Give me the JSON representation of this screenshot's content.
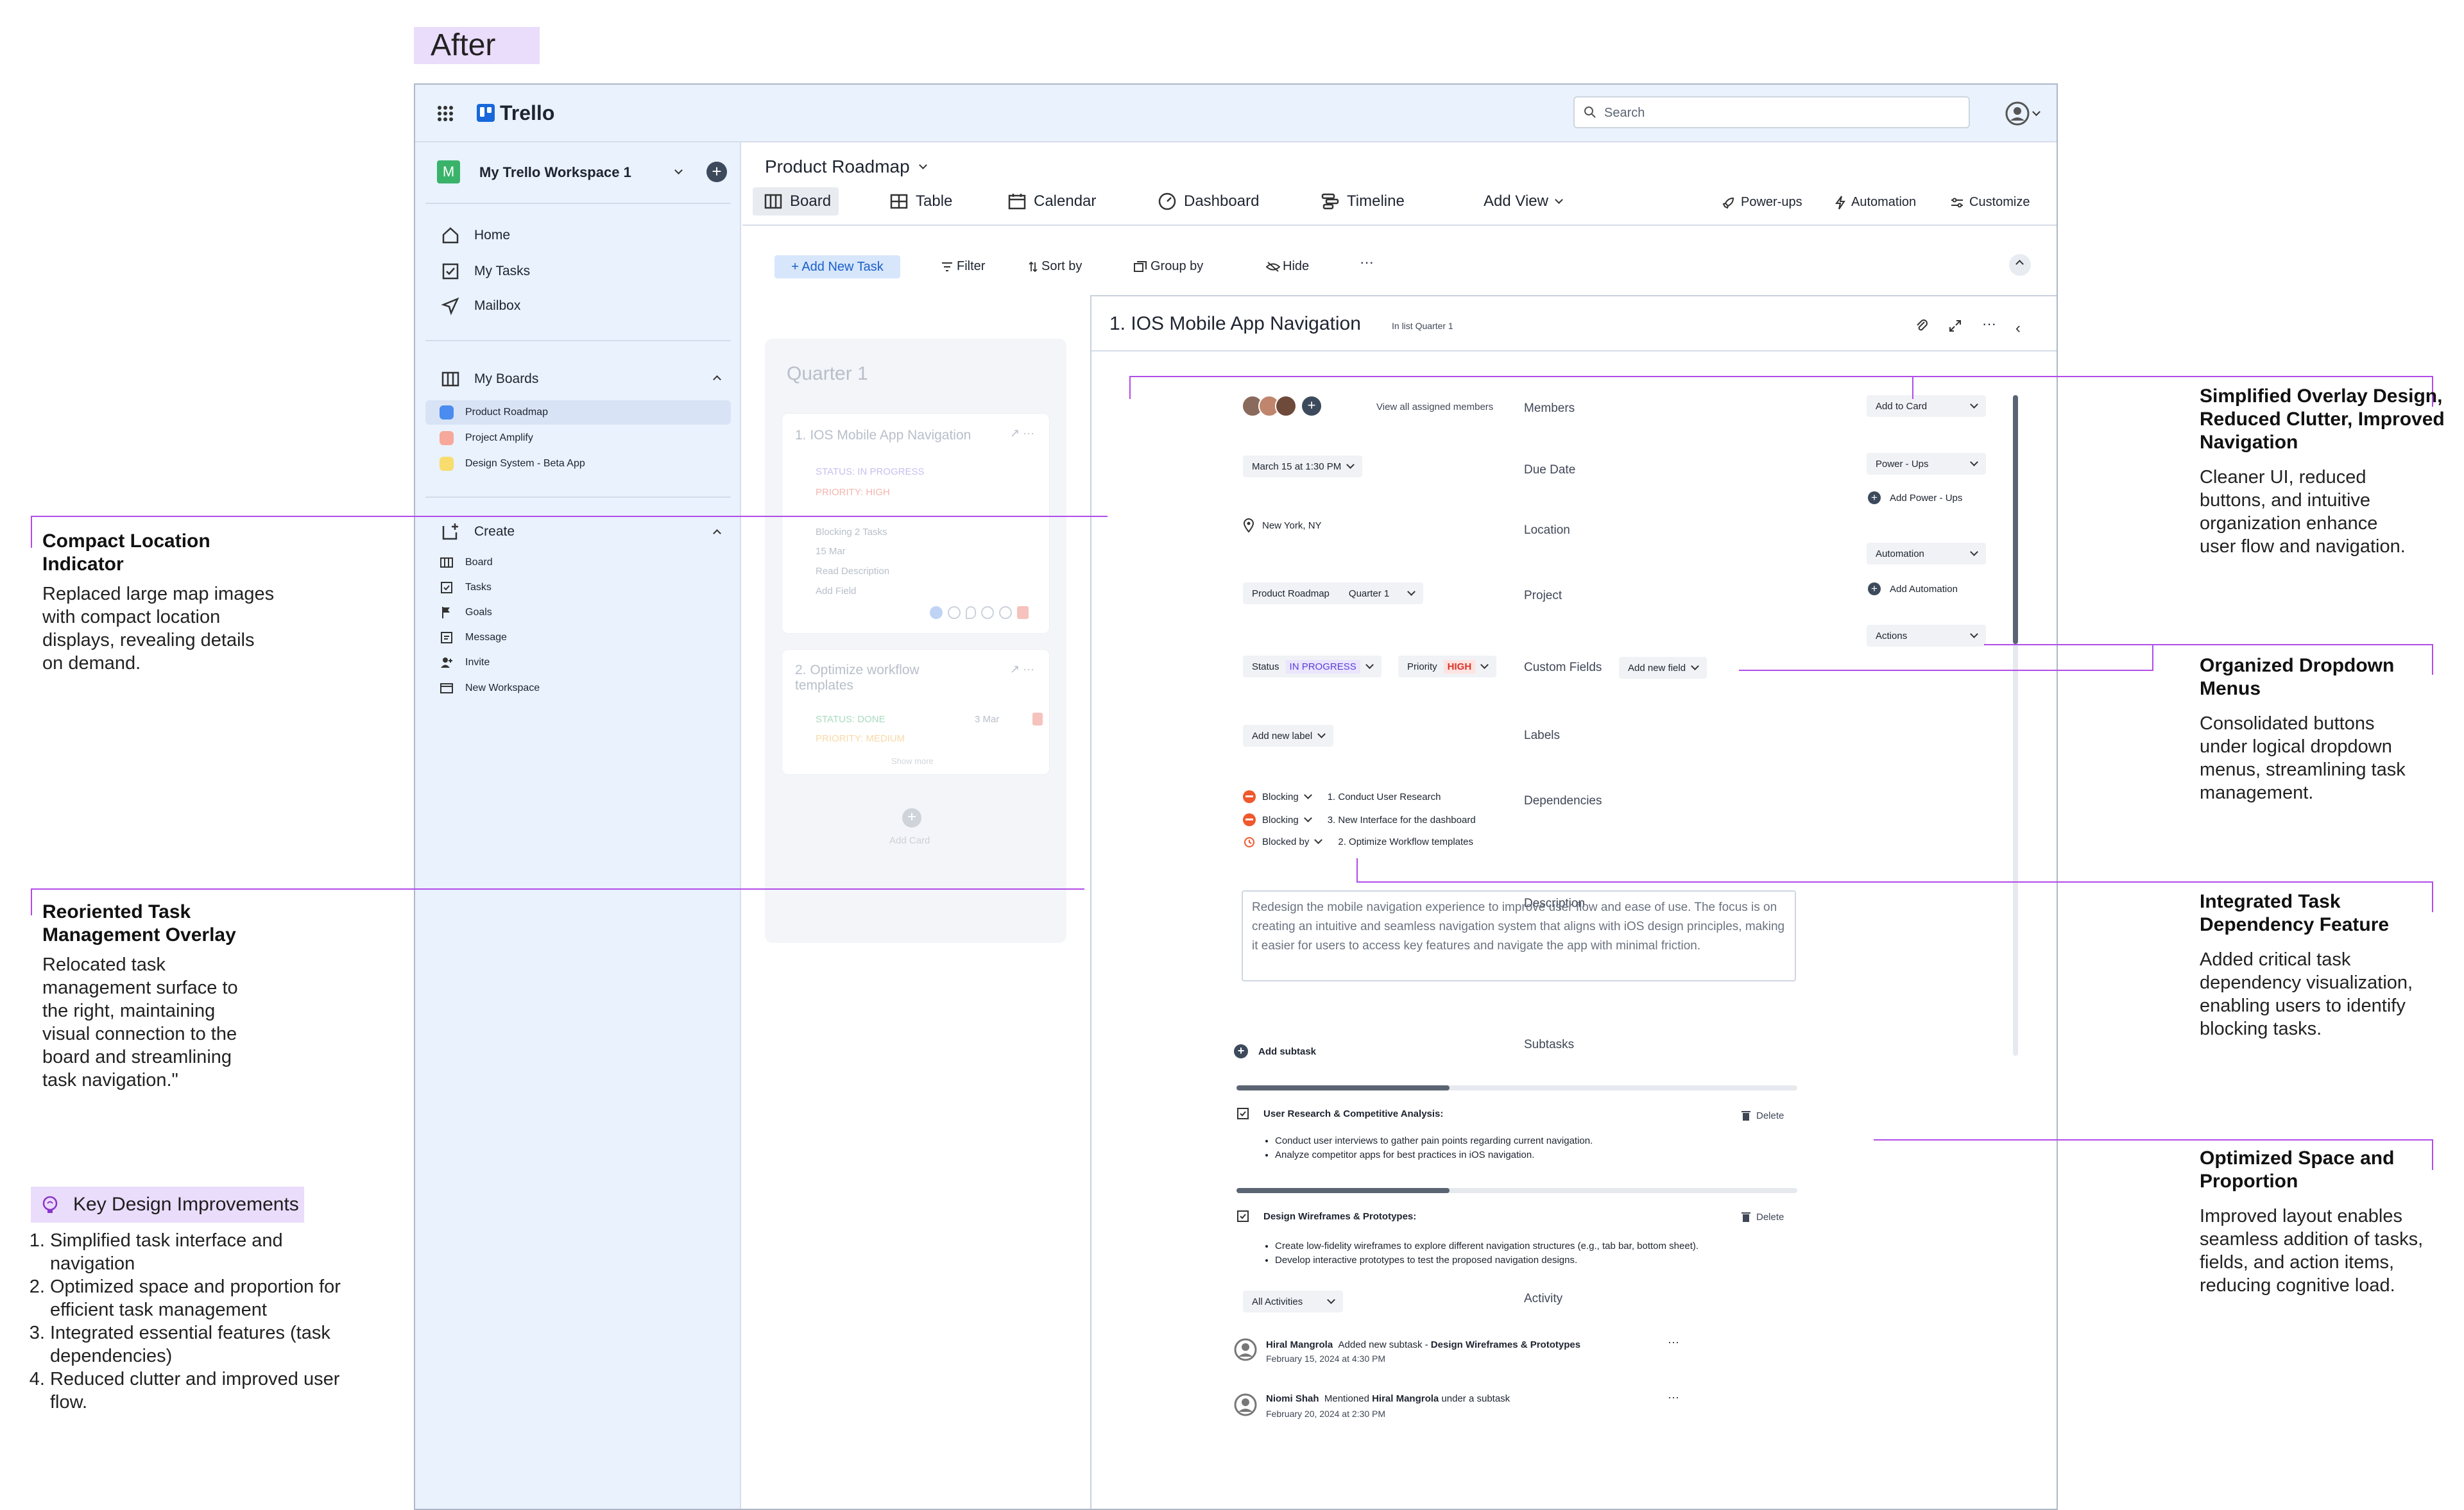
{
  "tag": "After",
  "topbar": {
    "app_name": "Trello",
    "search_placeholder": "Search"
  },
  "sidebar": {
    "workspace_initial": "M",
    "workspace_name": "My Trello Workspace 1",
    "nav": [
      "Home",
      "My Tasks",
      "Mailbox"
    ],
    "boards_header": "My Boards",
    "boards": [
      {
        "label": "Product Roadmap",
        "color": "#4a8cf0"
      },
      {
        "label": "Project Amplify",
        "color": "#f7a89a"
      },
      {
        "label": "Design System - Beta App",
        "color": "#f8dc6e"
      }
    ],
    "create_header": "Create",
    "create_items": [
      "Board",
      "Tasks",
      "Goals",
      "Message",
      "Invite",
      "New Workspace"
    ]
  },
  "board": {
    "title": "Product Roadmap",
    "views": [
      "Board",
      "Table",
      "Calendar",
      "Dashboard",
      "Timeline",
      "Add View"
    ],
    "right_actions": [
      "Power-ups",
      "Automation",
      "Customize"
    ],
    "toolbar": {
      "add_task": "+ Add New Task",
      "filter": "Filter",
      "sort": "Sort by",
      "group": "Group by",
      "hide": "Hide",
      "more": "···"
    }
  },
  "list": {
    "title": "Quarter 1",
    "card1": {
      "title": "1. IOS Mobile App Navigation",
      "status": "STATUS: IN PROGRESS",
      "priority": "PRIORITY: HIGH",
      "blocking": "Blocking 2 Tasks",
      "date": "15 Mar",
      "read": "Read Description",
      "add_field": "Add Field"
    },
    "card2": {
      "title": "2. Optimize workflow templates",
      "status": "STATUS: DONE",
      "priority": "PRIORITY: MEDIUM",
      "date": "3 Mar",
      "show_more": "Show more"
    },
    "add_card": "Add Card"
  },
  "detail": {
    "title": "1. IOS Mobile App Navigation",
    "in_list": "In list Quarter 1",
    "labels": {
      "members": "Members",
      "due": "Due Date",
      "location": "Location",
      "project": "Project",
      "custom": "Custom Fields",
      "labels": "Labels",
      "deps": "Dependencies",
      "desc": "Description",
      "subtasks": "Subtasks",
      "activity": "Activity"
    },
    "view_members": "View all assigned members",
    "due_value": "March 15 at 1:30 PM",
    "location_value": "New York, NY",
    "project_value": "Product Roadmap",
    "project_list": "Quarter 1",
    "status_label": "Status",
    "status_value": "IN PROGRESS",
    "priority_label": "Priority",
    "priority_value": "HIGH",
    "add_new_field": "Add new field",
    "add_new_label": "Add new label",
    "deps": [
      {
        "type": "Blocking",
        "task": "1. Conduct User Research"
      },
      {
        "type": "Blocking",
        "task": "3. New Interface for the dashboard"
      },
      {
        "type": "Blocked by",
        "task": "2. Optimize Workflow templates"
      }
    ],
    "description": "Redesign the mobile navigation experience to improve user flow and ease of use. The focus is on creating an intuitive and seamless navigation system that aligns with iOS design principles, making it easier for users to access key features and navigate the app with minimal friction.",
    "add_subtask": "Add subtask",
    "subtask1": {
      "title": "User Research & Competitive Analysis:",
      "delete": "Delete",
      "items": [
        "Conduct user interviews to gather pain points regarding current navigation.",
        "Analyze competitor apps for best practices in iOS navigation."
      ]
    },
    "subtask2": {
      "title": "Design Wireframes & Prototypes:",
      "delete": "Delete",
      "items": [
        "Create low-fidelity wireframes to explore different navigation structures (e.g., tab bar, bottom sheet).",
        "Develop interactive prototypes to test the proposed navigation designs."
      ]
    },
    "activity_filter": "All Activities",
    "activities": [
      {
        "user": "Hiral Mangrola",
        "action": "Added new subtask - ",
        "target": "Design Wireframes & Prototypes",
        "tail": "",
        "date": "February 15, 2024 at 4:30 PM"
      },
      {
        "user": "Niomi Shah",
        "action": "Mentioned ",
        "target": "Hiral Mangrola",
        "tail": " under a subtask",
        "date": "February 20, 2024 at 2:30 PM"
      }
    ],
    "right_panel": {
      "add_to_card": "Add to Card",
      "power_ups": "Power - Ups",
      "add_power_ups": "Add Power - Ups",
      "automation": "Automation",
      "add_automation": "Add Automation",
      "actions": "Actions"
    }
  },
  "annotations": {
    "compact": {
      "title": "Compact Location Indicator",
      "body": "Replaced large map images with compact location displays, revealing details on demand."
    },
    "reoriented": {
      "title": "Reoriented Task Management Overlay",
      "body": "Relocated task management surface to the right, maintaining visual connection to the board and streamlining task navigation.\""
    },
    "key": {
      "title": "Key Design Improvements",
      "items": [
        "Simplified task interface and navigation",
        "Optimized space and proportion for efficient task management",
        "Integrated essential features (task dependencies)",
        "Reduced clutter and improved user flow."
      ]
    },
    "simplified": {
      "title": "Simplified Overlay Design, Reduced Clutter, Improved Navigation",
      "body": "Cleaner UI, reduced buttons, and intuitive organization enhance user flow and navigation."
    },
    "organized": {
      "title": "Organized Dropdown Menus",
      "body": "Consolidated buttons under logical dropdown menus, streamlining task management."
    },
    "integrated": {
      "title": "Integrated Task Dependency Feature",
      "body": "Added critical task dependency visualization, enabling users to identify blocking tasks."
    },
    "optimized": {
      "title": "Optimized Space and Proportion",
      "body": "Improved layout enables seamless addition of tasks, fields, and action items, reducing cognitive load."
    }
  },
  "colors": {
    "accent": "#b14ce8",
    "status": "#5b3fd6",
    "priority": "#d9342b",
    "sidebar": "#e9f2fd"
  }
}
